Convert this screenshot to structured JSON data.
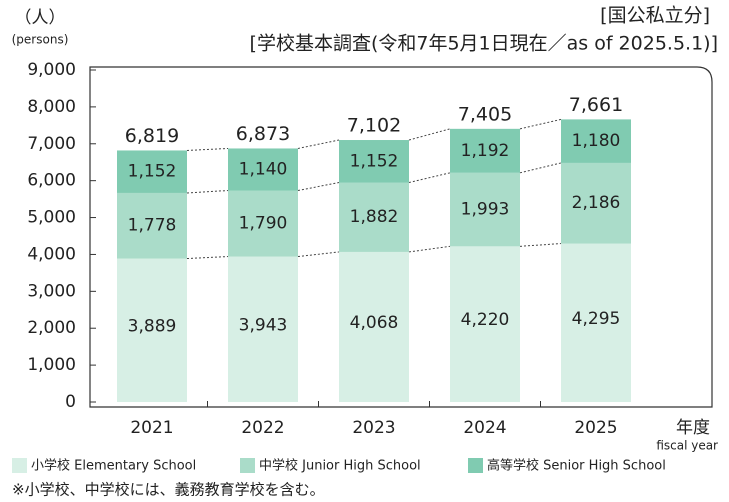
{
  "chart_data": {
    "type": "stacked_bar",
    "unit_label": "（人）",
    "unit_label_en": "(persons)",
    "subtitle": "[国公私立分]",
    "title": "[学校基本調査(令和7年5月1日現在／as of 2025.5.1)]",
    "x_label": "年度",
    "x_label_en": "fiscal year",
    "categories": [
      "2021",
      "2022",
      "2023",
      "2024",
      "2025"
    ],
    "series": [
      {
        "name": "小学校 Elementary School",
        "color": "#d7efe5",
        "values": [
          3889,
          3943,
          4068,
          4220,
          4295
        ],
        "value_labels": [
          "3,889",
          "3,943",
          "4,068",
          "4,220",
          "4,295"
        ]
      },
      {
        "name": "中学校 Junior High School",
        "color": "#aadcc9",
        "values": [
          1778,
          1790,
          1882,
          1993,
          2186
        ],
        "value_labels": [
          "1,778",
          "1,790",
          "1,882",
          "1,993",
          "2,186"
        ]
      },
      {
        "name": "高等学校 Senior High School",
        "color": "#80cbb1",
        "values": [
          1152,
          1140,
          1152,
          1192,
          1180
        ],
        "value_labels": [
          "1,152",
          "1,140",
          "1,152",
          "1,192",
          "1,180"
        ]
      }
    ],
    "totals": [
      6819,
      6873,
      7102,
      7405,
      7661
    ],
    "totals_labels": [
      "6,819",
      "6,873",
      "7,102",
      "7,405",
      "7,661"
    ],
    "ylim": [
      0,
      9000
    ],
    "yticks": [
      0,
      {
        "value": 1000,
        "label": "1,000"
      },
      {
        "value": 2000,
        "label": "2,000"
      },
      {
        "value": 3000,
        "label": "3,000"
      },
      {
        "value": 4000,
        "label": "4,000"
      },
      {
        "value": 5000,
        "label": "5,000"
      },
      {
        "value": 6000,
        "label": "6,000"
      },
      {
        "value": 7000,
        "label": "7,000"
      },
      {
        "value": 8000,
        "label": "8,000"
      },
      {
        "value": 9000,
        "label": "9,000"
      }
    ],
    "note": "※小学校、中学校には、義務教育学校を含む。"
  }
}
